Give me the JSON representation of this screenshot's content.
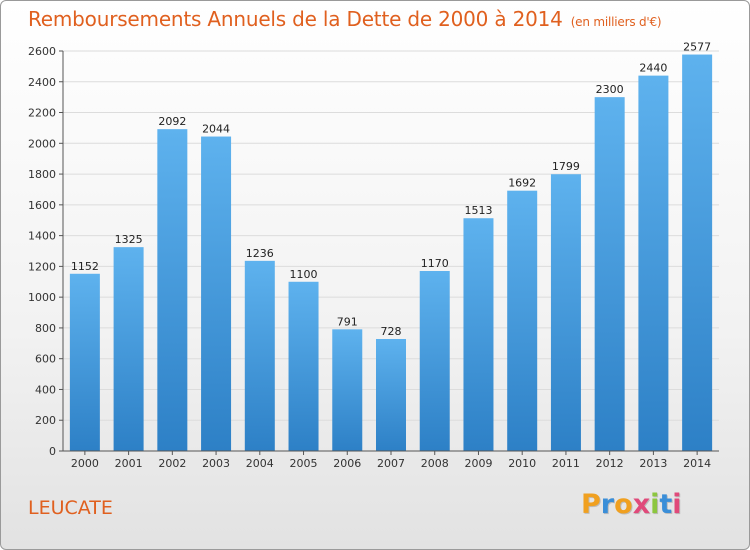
{
  "title": "Remboursements Annuels de la Dette de 2000 à 2014",
  "unit_note": "(en milliers d'€)",
  "city": "LEUCATE",
  "brand": {
    "letters": [
      "P",
      "r",
      "o",
      "x",
      "i",
      "t",
      "i"
    ],
    "colors": [
      "#f0a020",
      "#3a8ed8",
      "#f0a020",
      "#e04a7a",
      "#8cc63f",
      "#3a8ed8",
      "#e04a7a"
    ]
  },
  "colors": {
    "bar_light": "#5eb2ee",
    "bar_dark": "#2d80c6",
    "grid": "#dcdcdc",
    "accent": "#e0601f"
  },
  "chart_data": {
    "type": "bar",
    "title": "Remboursements Annuels de la Dette de 2000 à 2014",
    "xlabel": "",
    "ylabel": "",
    "categories": [
      "2000",
      "2001",
      "2002",
      "2003",
      "2004",
      "2005",
      "2006",
      "2007",
      "2008",
      "2009",
      "2010",
      "2011",
      "2012",
      "2013",
      "2014"
    ],
    "values": [
      1152,
      1325,
      2092,
      2044,
      1236,
      1100,
      791,
      728,
      1170,
      1513,
      1692,
      1799,
      2300,
      2440,
      2577
    ],
    "ylim": [
      0,
      2600
    ],
    "yticks": [
      0,
      200,
      400,
      600,
      800,
      1000,
      1200,
      1400,
      1600,
      1800,
      2000,
      2200,
      2400,
      2600
    ],
    "grid": true,
    "data_labels": true
  }
}
